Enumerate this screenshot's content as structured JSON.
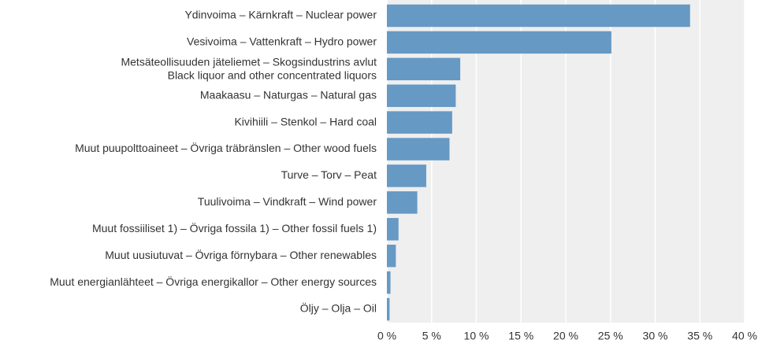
{
  "chart_data": {
    "type": "barh",
    "categories": [
      "Ydinvoima  – Kärnkraft – Nuclear power",
      "Vesivoima – Vattenkraft – Hydro power",
      "Metsäteollisuuden jäteliemet – Skogsindustrins avlut\nBlack liquor and other concentrated liquors",
      "Maakaasu – Naturgas – Natural gas",
      "Kivihiili – Stenkol – Hard coal",
      "Muut puupolttoaineet – Övriga träbränslen – Other wood fuels",
      "Turve – Torv – Peat",
      "Tuulivoima – Vindkraft – Wind power",
      "Muut fossiiliset 1) – Övriga fossila 1) – Other fossil fuels 1)",
      "Muut uusiutuvat – Övriga förnybara – Other renewables",
      "Muut energianlähteet – Övriga energikallor – Other energy sources",
      "Öljy – Olja – Oil"
    ],
    "values": [
      33.9,
      25.1,
      8.2,
      7.7,
      7.3,
      7.0,
      4.4,
      3.4,
      1.3,
      1.0,
      0.4,
      0.3
    ],
    "color": "#6699c4",
    "xlim": [
      0,
      40
    ],
    "xticks": [
      {
        "value": 0,
        "label": "0 %"
      },
      {
        "value": 5,
        "label": "5 %"
      },
      {
        "value": 10,
        "label": "10 %"
      },
      {
        "value": 15,
        "label": "15 %"
      },
      {
        "value": 20,
        "label": "20 %"
      },
      {
        "value": 25,
        "label": "25 %"
      },
      {
        "value": 30,
        "label": "30 %"
      },
      {
        "value": 35,
        "label": "35 %"
      },
      {
        "value": 40,
        "label": "40 %"
      }
    ],
    "grid": true
  }
}
